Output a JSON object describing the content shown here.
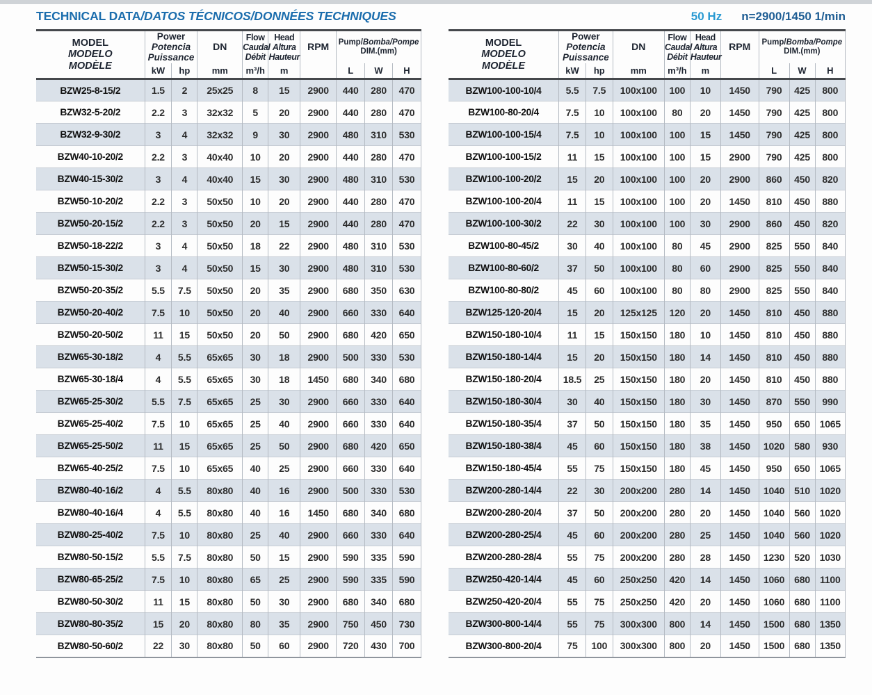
{
  "title": {
    "main": "TECHNICAL DATA",
    "secondary": "/DATOS TÉCNICOS/DONNÉES TECHNIQUES"
  },
  "frequency": "50 Hz",
  "speed": "n=2900/1450 1/min",
  "colors": {
    "title_blue": "#1b6dad",
    "freq_blue": "#2a9ad2",
    "speed_blue": "#1f5e94",
    "row_shade": "#dae1e9",
    "rule_dark": "#45484c",
    "grid_line": "#b4bac2"
  },
  "columns": {
    "model": [
      "MODEL",
      "MODELO",
      "MODÈLE"
    ],
    "power": [
      "Power",
      "Potencia",
      "Puissance"
    ],
    "kw_unit": "kW",
    "hp_unit": "hp",
    "dn": "DN",
    "dn_unit": "mm",
    "flow": [
      "Flow",
      "Caudal",
      "Débit"
    ],
    "flow_unit": "m³/h",
    "head": [
      "Head",
      "Altura",
      "Hauteur"
    ],
    "head_unit": "m",
    "rpm": "RPM",
    "dim_main": "Pump/",
    "dim_italic": "Bomba/Pompe",
    "dim_sub": "DIM.(mm)",
    "l_unit": "L",
    "w_unit": "W",
    "h_unit": "H"
  },
  "tables": {
    "left": {
      "rows": [
        [
          "BZW25-8-15/2",
          "1.5",
          "2",
          "25x25",
          "8",
          "15",
          "2900",
          "440",
          "280",
          "470"
        ],
        [
          "BZW32-5-20/2",
          "2.2",
          "3",
          "32x32",
          "5",
          "20",
          "2900",
          "440",
          "280",
          "470"
        ],
        [
          "BZW32-9-30/2",
          "3",
          "4",
          "32x32",
          "9",
          "30",
          "2900",
          "480",
          "310",
          "530"
        ],
        [
          "BZW40-10-20/2",
          "2.2",
          "3",
          "40x40",
          "10",
          "20",
          "2900",
          "440",
          "280",
          "470"
        ],
        [
          "BZW40-15-30/2",
          "3",
          "4",
          "40x40",
          "15",
          "30",
          "2900",
          "480",
          "310",
          "530"
        ],
        [
          "BZW50-10-20/2",
          "2.2",
          "3",
          "50x50",
          "10",
          "20",
          "2900",
          "440",
          "280",
          "470"
        ],
        [
          "BZW50-20-15/2",
          "2.2",
          "3",
          "50x50",
          "20",
          "15",
          "2900",
          "440",
          "280",
          "470"
        ],
        [
          "BZW50-18-22/2",
          "3",
          "4",
          "50x50",
          "18",
          "22",
          "2900",
          "480",
          "310",
          "530"
        ],
        [
          "BZW50-15-30/2",
          "3",
          "4",
          "50x50",
          "15",
          "30",
          "2900",
          "480",
          "310",
          "530"
        ],
        [
          "BZW50-20-35/2",
          "5.5",
          "7.5",
          "50x50",
          "20",
          "35",
          "2900",
          "680",
          "350",
          "630"
        ],
        [
          "BZW50-20-40/2",
          "7.5",
          "10",
          "50x50",
          "20",
          "40",
          "2900",
          "660",
          "330",
          "640"
        ],
        [
          "BZW50-20-50/2",
          "11",
          "15",
          "50x50",
          "20",
          "50",
          "2900",
          "680",
          "420",
          "650"
        ],
        [
          "BZW65-30-18/2",
          "4",
          "5.5",
          "65x65",
          "30",
          "18",
          "2900",
          "500",
          "330",
          "530"
        ],
        [
          "BZW65-30-18/4",
          "4",
          "5.5",
          "65x65",
          "30",
          "18",
          "1450",
          "680",
          "340",
          "680"
        ],
        [
          "BZW65-25-30/2",
          "5.5",
          "7.5",
          "65x65",
          "25",
          "30",
          "2900",
          "660",
          "330",
          "640"
        ],
        [
          "BZW65-25-40/2",
          "7.5",
          "10",
          "65x65",
          "25",
          "40",
          "2900",
          "660",
          "330",
          "640"
        ],
        [
          "BZW65-25-50/2",
          "11",
          "15",
          "65x65",
          "25",
          "50",
          "2900",
          "680",
          "420",
          "650"
        ],
        [
          "BZW65-40-25/2",
          "7.5",
          "10",
          "65x65",
          "40",
          "25",
          "2900",
          "660",
          "330",
          "640"
        ],
        [
          "BZW80-40-16/2",
          "4",
          "5.5",
          "80x80",
          "40",
          "16",
          "2900",
          "500",
          "330",
          "530"
        ],
        [
          "BZW80-40-16/4",
          "4",
          "5.5",
          "80x80",
          "40",
          "16",
          "1450",
          "680",
          "340",
          "680"
        ],
        [
          "BZW80-25-40/2",
          "7.5",
          "10",
          "80x80",
          "25",
          "40",
          "2900",
          "660",
          "330",
          "640"
        ],
        [
          "BZW80-50-15/2",
          "5.5",
          "7.5",
          "80x80",
          "50",
          "15",
          "2900",
          "590",
          "335",
          "590"
        ],
        [
          "BZW80-65-25/2",
          "7.5",
          "10",
          "80x80",
          "65",
          "25",
          "2900",
          "590",
          "335",
          "590"
        ],
        [
          "BZW80-50-30/2",
          "11",
          "15",
          "80x80",
          "50",
          "30",
          "2900",
          "680",
          "340",
          "680"
        ],
        [
          "BZW80-80-35/2",
          "15",
          "20",
          "80x80",
          "80",
          "35",
          "2900",
          "750",
          "450",
          "730"
        ],
        [
          "BZW80-50-60/2",
          "22",
          "30",
          "80x80",
          "50",
          "60",
          "2900",
          "720",
          "430",
          "700"
        ]
      ]
    },
    "right": {
      "rows": [
        [
          "BZW100-100-10/4",
          "5.5",
          "7.5",
          "100x100",
          "100",
          "10",
          "1450",
          "790",
          "425",
          "800"
        ],
        [
          "BZW100-80-20/4",
          "7.5",
          "10",
          "100x100",
          "80",
          "20",
          "1450",
          "790",
          "425",
          "800"
        ],
        [
          "BZW100-100-15/4",
          "7.5",
          "10",
          "100x100",
          "100",
          "15",
          "1450",
          "790",
          "425",
          "800"
        ],
        [
          "BZW100-100-15/2",
          "11",
          "15",
          "100x100",
          "100",
          "15",
          "2900",
          "790",
          "425",
          "800"
        ],
        [
          "BZW100-100-20/2",
          "15",
          "20",
          "100x100",
          "100",
          "20",
          "2900",
          "860",
          "450",
          "820"
        ],
        [
          "BZW100-100-20/4",
          "11",
          "15",
          "100x100",
          "100",
          "20",
          "1450",
          "810",
          "450",
          "880"
        ],
        [
          "BZW100-100-30/2",
          "22",
          "30",
          "100x100",
          "100",
          "30",
          "2900",
          "860",
          "450",
          "820"
        ],
        [
          "BZW100-80-45/2",
          "30",
          "40",
          "100x100",
          "80",
          "45",
          "2900",
          "825",
          "550",
          "840"
        ],
        [
          "BZW100-80-60/2",
          "37",
          "50",
          "100x100",
          "80",
          "60",
          "2900",
          "825",
          "550",
          "840"
        ],
        [
          "BZW100-80-80/2",
          "45",
          "60",
          "100x100",
          "80",
          "80",
          "2900",
          "825",
          "550",
          "840"
        ],
        [
          "BZW125-120-20/4",
          "15",
          "20",
          "125x125",
          "120",
          "20",
          "1450",
          "810",
          "450",
          "880"
        ],
        [
          "BZW150-180-10/4",
          "11",
          "15",
          "150x150",
          "180",
          "10",
          "1450",
          "810",
          "450",
          "880"
        ],
        [
          "BZW150-180-14/4",
          "15",
          "20",
          "150x150",
          "180",
          "14",
          "1450",
          "810",
          "450",
          "880"
        ],
        [
          "BZW150-180-20/4",
          "18.5",
          "25",
          "150x150",
          "180",
          "20",
          "1450",
          "810",
          "450",
          "880"
        ],
        [
          "BZW150-180-30/4",
          "30",
          "40",
          "150x150",
          "180",
          "30",
          "1450",
          "870",
          "550",
          "990"
        ],
        [
          "BZW150-180-35/4",
          "37",
          "50",
          "150x150",
          "180",
          "35",
          "1450",
          "950",
          "650",
          "1065"
        ],
        [
          "BZW150-180-38/4",
          "45",
          "60",
          "150x150",
          "180",
          "38",
          "1450",
          "1020",
          "580",
          "930"
        ],
        [
          "BZW150-180-45/4",
          "55",
          "75",
          "150x150",
          "180",
          "45",
          "1450",
          "950",
          "650",
          "1065"
        ],
        [
          "BZW200-280-14/4",
          "22",
          "30",
          "200x200",
          "280",
          "14",
          "1450",
          "1040",
          "510",
          "1020"
        ],
        [
          "BZW200-280-20/4",
          "37",
          "50",
          "200x200",
          "280",
          "20",
          "1450",
          "1040",
          "560",
          "1020"
        ],
        [
          "BZW200-280-25/4",
          "45",
          "60",
          "200x200",
          "280",
          "25",
          "1450",
          "1040",
          "560",
          "1020"
        ],
        [
          "BZW200-280-28/4",
          "55",
          "75",
          "200x200",
          "280",
          "28",
          "1450",
          "1230",
          "520",
          "1030"
        ],
        [
          "BZW250-420-14/4",
          "45",
          "60",
          "250x250",
          "420",
          "14",
          "1450",
          "1060",
          "680",
          "1100"
        ],
        [
          "BZW250-420-20/4",
          "55",
          "75",
          "250x250",
          "420",
          "20",
          "1450",
          "1060",
          "680",
          "1100"
        ],
        [
          "BZW300-800-14/4",
          "55",
          "75",
          "300x300",
          "800",
          "14",
          "1450",
          "1500",
          "680",
          "1350"
        ],
        [
          "BZW300-800-20/4",
          "75",
          "100",
          "300x300",
          "800",
          "20",
          "1450",
          "1500",
          "680",
          "1350"
        ]
      ]
    }
  }
}
